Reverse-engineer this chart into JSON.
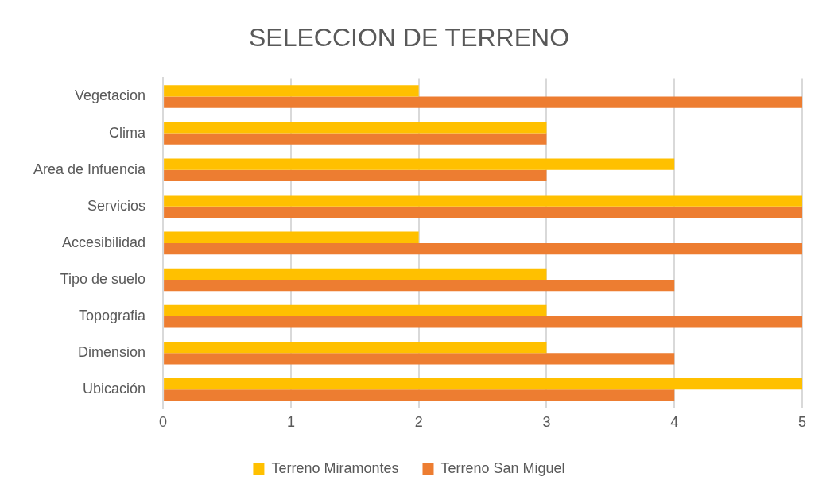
{
  "chart_data": {
    "type": "bar",
    "orientation": "horizontal",
    "title": "SELECCION DE TERRENO",
    "categories": [
      "Vegetacion",
      "Clima",
      "Area de Infuencia",
      "Servicios",
      "Accesibilidad",
      "Tipo de suelo",
      "Topografia",
      "Dimension",
      "Ubicación"
    ],
    "series": [
      {
        "name": "Terreno Miramontes",
        "color": "#ffc000",
        "values": [
          2,
          3,
          4,
          5,
          2,
          3,
          3,
          3,
          5
        ]
      },
      {
        "name": "Terreno San Miguel",
        "color": "#ed7d31",
        "values": [
          5,
          3,
          3,
          5,
          5,
          4,
          5,
          4,
          4
        ]
      }
    ],
    "xlim": [
      0,
      5
    ],
    "xticks": [
      0,
      1,
      2,
      3,
      4,
      5
    ],
    "grid": "x",
    "legend": "bottom"
  }
}
